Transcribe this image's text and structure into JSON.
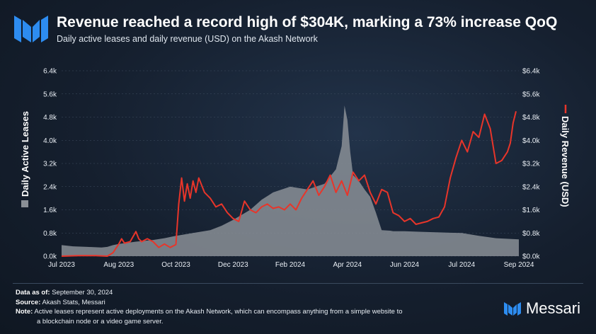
{
  "header": {
    "title": "Revenue reached a record high of $304K, marking a 73% increase QoQ",
    "subtitle": "Daily active leases and daily revenue (USD) on the Akash Network"
  },
  "colors": {
    "revenue_line": "#e8352a",
    "leases_area": "#8a8f96",
    "brand": "#2d8cf0"
  },
  "chart_data": {
    "type": "area+line",
    "x_ticks": [
      "Jul 2023",
      "Aug 2023",
      "Oct 2023",
      "Dec 2023",
      "Feb 2024",
      "Apr 2024",
      "Jun 2024",
      "Jul 2024",
      "Sep 2024"
    ],
    "left_axis": {
      "label": "Daily Active Leases",
      "ticks": [
        "0.0k",
        "0.8k",
        "1.6k",
        "2.4k",
        "3.2k",
        "4.0k",
        "4.8k",
        "5.6k",
        "6.4k"
      ],
      "range": [
        0,
        6400
      ]
    },
    "right_axis": {
      "label": "Daily Revenue (USD)",
      "ticks": [
        "$0.0k",
        "$0.8k",
        "$1.6k",
        "$2.4k",
        "$3.2k",
        "$4.0k",
        "$4.8k",
        "$5.6k",
        "$6.4k"
      ],
      "range": [
        0,
        6400
      ]
    },
    "series": [
      {
        "name": "Daily Active Leases",
        "kind": "area",
        "x": [
          0,
          0.2,
          0.45,
          0.7,
          0.8,
          0.9,
          1.0,
          1.3,
          1.6,
          1.8,
          2.0,
          2.3,
          2.6,
          2.8,
          3.0,
          3.3,
          3.5,
          3.7,
          4.0,
          4.3,
          4.6,
          4.8,
          4.9,
          4.95,
          5.0,
          5.05,
          5.1,
          5.2,
          5.3,
          5.4,
          5.5,
          5.6,
          5.75,
          5.8,
          6.0,
          6.3,
          6.6,
          7.0,
          7.3,
          7.6,
          8.0
        ],
        "values": [
          380,
          340,
          320,
          300,
          320,
          380,
          420,
          500,
          560,
          620,
          700,
          800,
          900,
          1050,
          1250,
          1600,
          1950,
          2200,
          2400,
          2300,
          2500,
          3000,
          3800,
          5200,
          4700,
          3600,
          2800,
          2600,
          2300,
          2050,
          1500,
          900,
          880,
          860,
          860,
          840,
          820,
          800,
          700,
          620,
          580
        ]
      },
      {
        "name": "Daily Revenue (USD)",
        "kind": "line",
        "x": [
          0,
          0.3,
          0.6,
          0.8,
          0.9,
          1.0,
          1.05,
          1.1,
          1.2,
          1.3,
          1.35,
          1.4,
          1.5,
          1.6,
          1.7,
          1.8,
          1.9,
          2.0,
          2.05,
          2.1,
          2.15,
          2.2,
          2.25,
          2.3,
          2.35,
          2.4,
          2.5,
          2.6,
          2.7,
          2.8,
          2.9,
          3.0,
          3.1,
          3.2,
          3.3,
          3.4,
          3.5,
          3.6,
          3.7,
          3.8,
          3.9,
          4.0,
          4.1,
          4.2,
          4.3,
          4.4,
          4.5,
          4.6,
          4.7,
          4.8,
          4.9,
          5.0,
          5.1,
          5.2,
          5.3,
          5.4,
          5.5,
          5.6,
          5.7,
          5.8,
          5.9,
          6.0,
          6.1,
          6.2,
          6.3,
          6.4,
          6.5,
          6.6,
          6.7,
          6.8,
          6.9,
          7.0,
          7.1,
          7.2,
          7.3,
          7.4,
          7.5,
          7.6,
          7.7,
          7.8,
          7.85,
          7.9,
          7.95
        ],
        "values": [
          0,
          20,
          20,
          0,
          120,
          420,
          600,
          450,
          500,
          850,
          600,
          500,
          600,
          500,
          300,
          420,
          300,
          400,
          1800,
          2700,
          1900,
          2500,
          2000,
          2600,
          2200,
          2700,
          2200,
          2000,
          1700,
          1800,
          1500,
          1300,
          1200,
          1900,
          1600,
          1500,
          1700,
          1800,
          1650,
          1700,
          1600,
          1800,
          1600,
          2000,
          2300,
          2600,
          2100,
          2400,
          2800,
          2200,
          2600,
          2100,
          2900,
          2600,
          2800,
          2200,
          1800,
          2300,
          2200,
          1500,
          1400,
          1200,
          1300,
          1100,
          1150,
          1200,
          1300,
          1350,
          1700,
          2700,
          3400,
          4000,
          3600,
          4300,
          4100,
          4900,
          4400,
          3200,
          3300,
          3600,
          3900,
          4600,
          5000
        ]
      }
    ],
    "legend": [
      {
        "label": "Daily Active Leases",
        "side": "left"
      },
      {
        "label": "Daily Revenue (USD)",
        "side": "right"
      }
    ]
  },
  "footer": {
    "data_label": "Data as of:",
    "data_value": "September 30, 2024",
    "source_label": "Source:",
    "source_value": "Akash Stats, Messari",
    "note_label": "Note:",
    "note_value_1": "Active leases represent active deployments on the Akash Network, which can encompass anything from a simple website to",
    "note_value_2": "a blockchain node or a video game server.",
    "brand": "Messari"
  }
}
